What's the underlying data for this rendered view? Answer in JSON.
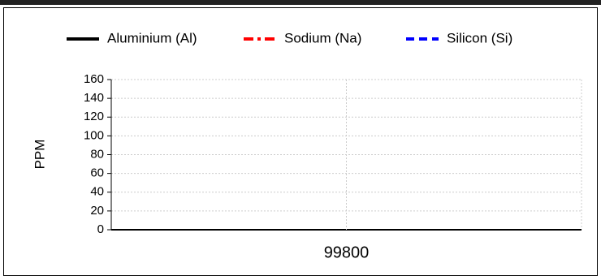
{
  "chart_data": {
    "type": "line",
    "y_label": "PPM",
    "categories": [
      "99800"
    ],
    "series": [
      {
        "name": "Aluminium (Al)",
        "color": "#000000",
        "dash": "solid",
        "values": [
          null
        ]
      },
      {
        "name": "Sodium (Na)",
        "color": "#ff0000",
        "dash": "dashdot",
        "values": [
          null
        ]
      },
      {
        "name": "Silicon (Si)",
        "color": "#0000ff",
        "dash": "dashed",
        "values": [
          null
        ]
      }
    ],
    "ylim": [
      0,
      160
    ],
    "yticks": [
      0,
      20,
      40,
      60,
      80,
      100,
      120,
      140,
      160
    ],
    "grid": true
  }
}
